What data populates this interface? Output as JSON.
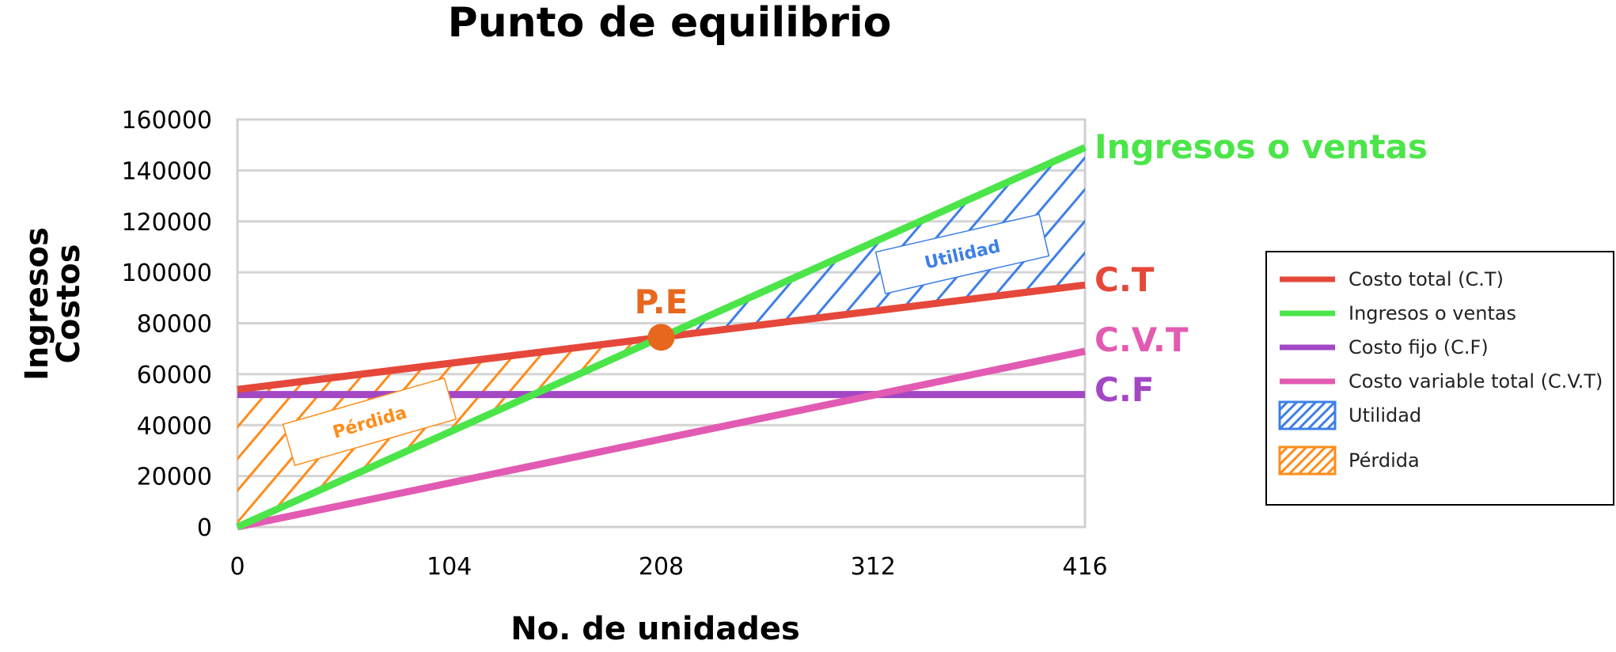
{
  "chart_data": {
    "type": "line",
    "title": "Punto de equilibrio",
    "xlabel": "No. de unidades",
    "ylabel_lines": [
      "Ingresos",
      "Costos"
    ],
    "x_ticks": [
      0,
      104,
      208,
      312,
      416
    ],
    "y_ticks": [
      0,
      20000,
      40000,
      60000,
      80000,
      100000,
      120000,
      140000,
      160000
    ],
    "xlim": [
      0,
      416
    ],
    "ylim": [
      0,
      160000
    ],
    "grid": "horizontal",
    "series": [
      {
        "name": "Costo total (C.T)",
        "end_label": "C.T",
        "color": "#E5483A",
        "x": [
          0,
          416
        ],
        "y": [
          54000,
          95000
        ]
      },
      {
        "name": "Ingresos o ventas",
        "end_label": "Ingresos o ventas",
        "color": "#4BE54A",
        "x": [
          0,
          416
        ],
        "y": [
          0,
          149000
        ]
      },
      {
        "name": "Costo fijo (C.F)",
        "end_label": "C.F",
        "color": "#A347C4",
        "x": [
          0,
          416
        ],
        "y": [
          52000,
          52000
        ]
      },
      {
        "name": "Costo variable total (C.V.T)",
        "end_label": "C.V.T",
        "color": "#E25BB2",
        "x": [
          0,
          416
        ],
        "y": [
          0,
          69000
        ]
      }
    ],
    "regions": [
      {
        "name": "Utilidad",
        "color": "#3E7FE6"
      },
      {
        "name": "Pérdida",
        "color": "#FF8C1A"
      }
    ],
    "annotations": {
      "breakeven": {
        "label": "P.E",
        "x": 208,
        "y": 74500,
        "color": "#E8671E"
      }
    },
    "legend_position": "right"
  }
}
